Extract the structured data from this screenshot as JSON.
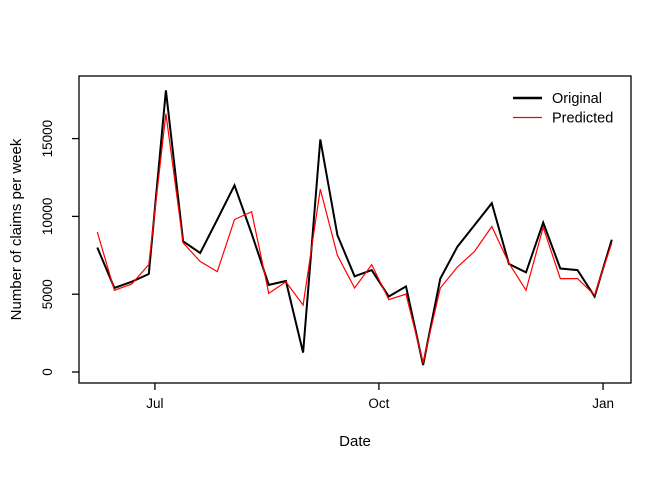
{
  "figure": {
    "background_color": "#ffffff",
    "axis_color": "#000000",
    "text_color": "#000000"
  },
  "chart_data": {
    "type": "line",
    "title": "",
    "xlabel": "Date",
    "ylabel": "Number of claims per week",
    "x_description": "Weekly observations, early June through early January (31 weekly points)",
    "x_weeks": [
      0,
      1,
      2,
      3,
      4,
      5,
      6,
      7,
      8,
      9,
      10,
      11,
      12,
      13,
      14,
      15,
      16,
      17,
      18,
      19,
      20,
      21,
      22,
      23,
      24,
      25,
      26,
      27,
      28,
      29,
      30
    ],
    "x_ticks": [
      {
        "label": "Jul",
        "week": 3.36
      },
      {
        "label": "Oct",
        "week": 16.42
      },
      {
        "label": "Jan",
        "week": 29.49
      }
    ],
    "y_ticks": [
      0,
      5000,
      10000,
      15000
    ],
    "ylim": [
      -700,
      19020
    ],
    "xlim_weeks": [
      -1.07,
      31.12
    ],
    "grid": false,
    "legend": {
      "position": "top-right-inside",
      "box": false,
      "entries": [
        "Original",
        "Predicted"
      ]
    },
    "series": [
      {
        "name": "Original",
        "color": "#000000",
        "line_width": 2,
        "values": [
          8000,
          5400,
          5800,
          6300,
          18100,
          8400,
          7650,
          9800,
          12000,
          8900,
          5600,
          5850,
          1250,
          14950,
          8800,
          6150,
          6550,
          4850,
          5500,
          450,
          6000,
          8050,
          9450,
          10850,
          6950,
          6400,
          9600,
          6650,
          6550,
          4850,
          8500
        ]
      },
      {
        "name": "Predicted",
        "color": "#FF0000",
        "line_width": 1.2,
        "values": [
          9000,
          5250,
          5650,
          6900,
          16600,
          8300,
          7100,
          6450,
          9800,
          10300,
          5050,
          5800,
          4300,
          11750,
          7500,
          5400,
          6900,
          4650,
          5000,
          600,
          5400,
          6750,
          7750,
          9350,
          7000,
          5250,
          9300,
          6000,
          6000,
          4950,
          8300
        ]
      }
    ]
  }
}
